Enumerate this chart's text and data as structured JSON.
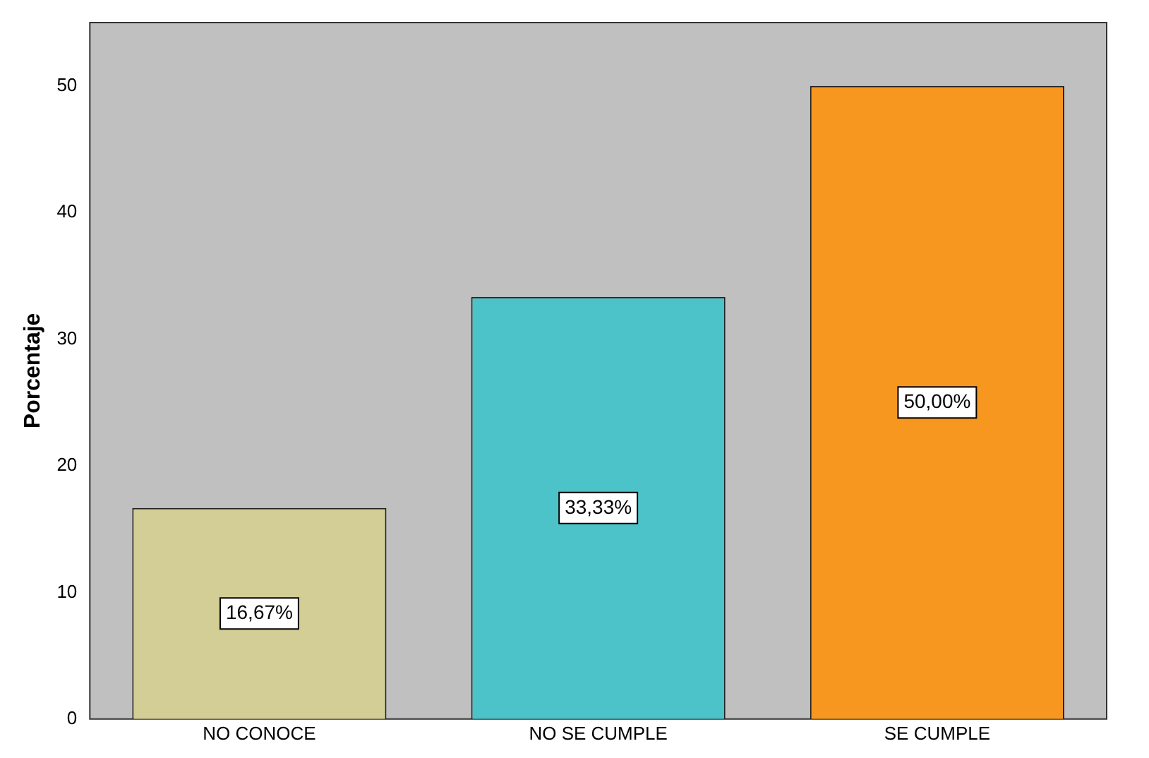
{
  "chart_data": {
    "type": "bar",
    "ylabel": "Porcentaje",
    "categories": [
      "NO CONOCE",
      "NO SE CUMPLE",
      "SE CUMPLE"
    ],
    "values": [
      16.67,
      33.33,
      50.0
    ],
    "colors": [
      "#d3cd96",
      "#4cc3c8",
      "#f7971f"
    ],
    "value_labels": [
      "16,67%",
      "33,33%",
      "50,00%"
    ],
    "ylim": [
      0,
      55
    ],
    "yticks": [
      0,
      10,
      20,
      30,
      40,
      50
    ],
    "grid": false,
    "legend": false
  }
}
